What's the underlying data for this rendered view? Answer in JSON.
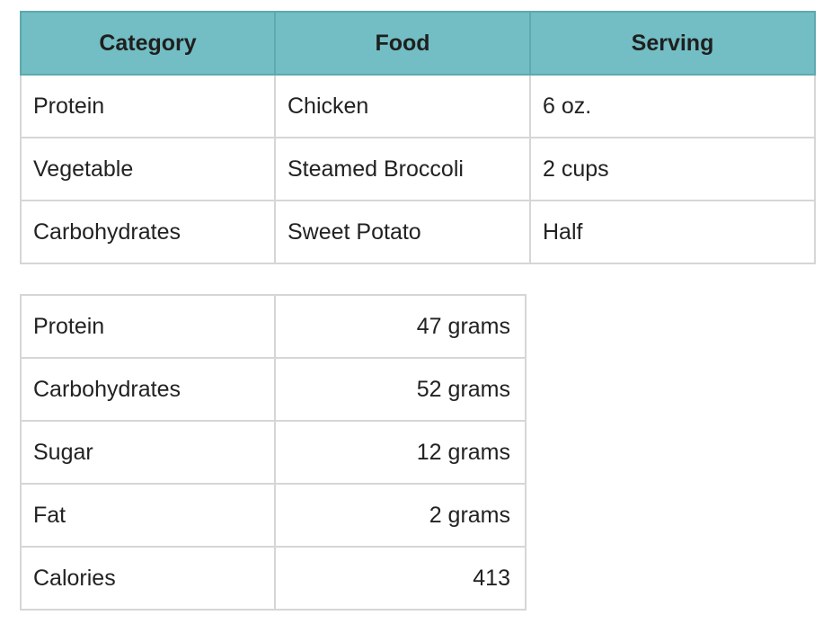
{
  "meal_table": {
    "headers": [
      "Category",
      "Food",
      "Serving"
    ],
    "rows": [
      [
        "Protein",
        "Chicken",
        "6 oz."
      ],
      [
        "Vegetable",
        "Steamed Broccoli",
        "2 cups"
      ],
      [
        "Carbohydrates",
        "Sweet Potato",
        "Half"
      ]
    ],
    "header_color": "#72bec4"
  },
  "nutrition_table": {
    "rows": [
      [
        "Protein",
        "47 grams"
      ],
      [
        "Carbohydrates",
        "52 grams"
      ],
      [
        "Sugar",
        "12 grams"
      ],
      [
        "Fat",
        "2 grams"
      ],
      [
        "Calories",
        "413"
      ]
    ]
  }
}
